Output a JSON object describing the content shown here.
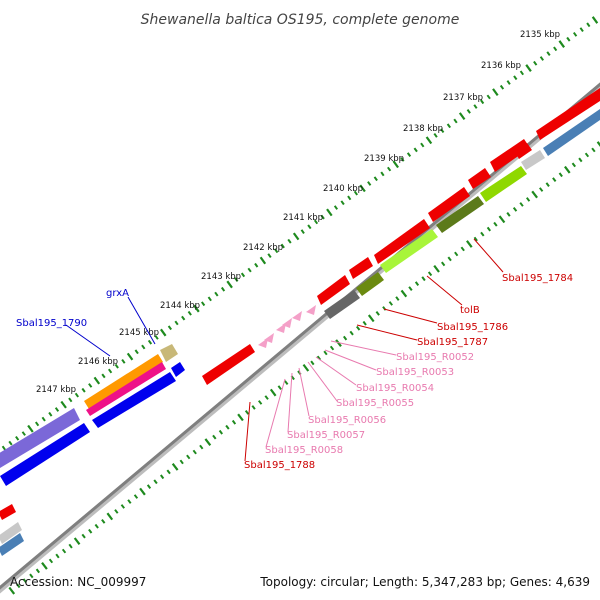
{
  "title": "Shewanella baltica OS195, complete genome",
  "footer": {
    "accession": "Accession: NC_009997",
    "summary": "Topology: circular; Length: 5,347,283 bp; Genes: 4,639"
  },
  "colors": {
    "backbone": "#7f7f7f",
    "tick_green": "#1e8a1e",
    "label_red": "#cc0000",
    "label_blue": "#0000cc",
    "label_pink": "#e87aaf"
  },
  "kbp_ticks": [
    "2135 kbp",
    "2136 kbp",
    "2137 kbp",
    "2138 kbp",
    "2139 kbp",
    "2140 kbp",
    "2141 kbp",
    "2142 kbp",
    "2143 kbp",
    "2144 kbp",
    "2145 kbp",
    "2146 kbp",
    "2147 kbp"
  ],
  "gene_labels": [
    {
      "id": "l-grxA",
      "text": "grxA",
      "color": "blue"
    },
    {
      "id": "l-1790",
      "text": "Sbal195_1790",
      "color": "blue"
    },
    {
      "id": "l-1784",
      "text": "Sbal195_1784",
      "color": "red"
    },
    {
      "id": "l-tolB",
      "text": "tolB",
      "color": "red"
    },
    {
      "id": "l-1786",
      "text": "Sbal195_1786",
      "color": "red"
    },
    {
      "id": "l-1787",
      "text": "Sbal195_1787",
      "color": "red"
    },
    {
      "id": "l-r52",
      "text": "Sbal195_R0052",
      "color": "pink"
    },
    {
      "id": "l-r53",
      "text": "Sbal195_R0053",
      "color": "pink"
    },
    {
      "id": "l-r54",
      "text": "Sbal195_R0054",
      "color": "pink"
    },
    {
      "id": "l-r55",
      "text": "Sbal195_R0055",
      "color": "pink"
    },
    {
      "id": "l-r56",
      "text": "Sbal195_R0056",
      "color": "pink"
    },
    {
      "id": "l-r57",
      "text": "Sbal195_R0057",
      "color": "pink"
    },
    {
      "id": "l-r58",
      "text": "Sbal195_R0058",
      "color": "pink"
    },
    {
      "id": "l-1788",
      "text": "Sbal195_1788",
      "color": "red"
    }
  ]
}
